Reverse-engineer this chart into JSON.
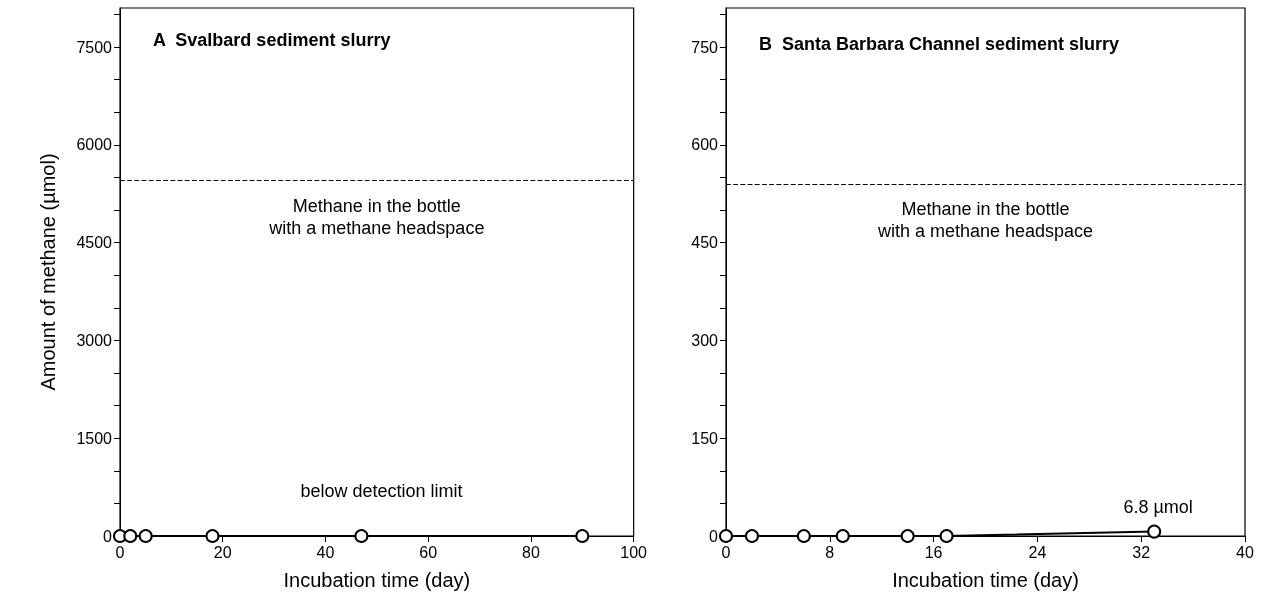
{
  "chart_data": [
    {
      "type": "line",
      "title": "A  Svalbard sediment slurry",
      "xlabel": "Incubation time (day)",
      "ylabel": "Amount of methane (µmol)",
      "x": [
        0,
        2,
        5,
        18,
        47,
        90
      ],
      "series": [
        {
          "color": "#000000",
          "values": [
            0,
            0,
            0,
            0,
            0,
            0
          ]
        }
      ],
      "marker": "circle",
      "line_style": "solid",
      "grid": false,
      "xlim": [
        0,
        100
      ],
      "xticks": [
        0,
        20,
        40,
        60,
        80,
        100
      ],
      "ylim": [
        0,
        8100
      ],
      "yticks": [
        0,
        {
          "value": 500,
          "label": null
        },
        {
          "value": 1000,
          "label": null
        },
        1500,
        {
          "value": 2000,
          "label": null
        },
        {
          "value": 2500,
          "label": null
        },
        3000,
        {
          "value": 3500,
          "label": null
        },
        {
          "value": 4000,
          "label": null
        },
        4500,
        {
          "value": 5000,
          "label": null
        },
        {
          "value": 5500,
          "label": null
        },
        6000,
        {
          "value": 6500,
          "label": null
        },
        {
          "value": 7000,
          "label": null
        },
        7500,
        {
          "value": 8000,
          "label": null
        }
      ],
      "ref_lines": [
        {
          "axis": "y",
          "value": 5450,
          "label": "Methane in the bottle\nwith a methane headspace",
          "line_style": "dashed",
          "color": "#000000"
        }
      ],
      "annotations": [
        "below detection limit"
      ]
    },
    {
      "type": "line",
      "title": "B  Santa Barbara Channel sediment slurry",
      "xlabel": "Incubation time (day)",
      "x": [
        0,
        2,
        6,
        9,
        14,
        17,
        33
      ],
      "series": [
        {
          "color": "#000000",
          "values": [
            0,
            0,
            0,
            0,
            0,
            0,
            6.8
          ]
        }
      ],
      "marker": "circle",
      "line_style": "solid",
      "grid": false,
      "xlim": [
        0,
        40
      ],
      "xticks": [
        0,
        8,
        16,
        24,
        32,
        40
      ],
      "ylim": [
        0,
        810
      ],
      "yticks": [
        0,
        {
          "value": 50,
          "label": null
        },
        {
          "value": 100,
          "label": null
        },
        150,
        {
          "value": 200,
          "label": null
        },
        {
          "value": 250,
          "label": null
        },
        300,
        {
          "value": 350,
          "label": null
        },
        {
          "value": 400,
          "label": null
        },
        450,
        {
          "value": 500,
          "label": null
        },
        {
          "value": 550,
          "label": null
        },
        600,
        {
          "value": 650,
          "label": null
        },
        {
          "value": 700,
          "label": null
        },
        750,
        {
          "value": 800,
          "label": null
        }
      ],
      "ref_lines": [
        {
          "axis": "y",
          "value": 540,
          "label": "Methane in the bottle\nwith a methane headspace",
          "line_style": "dashed",
          "color": "#000000"
        }
      ],
      "annotations": [
        {
          "text": "6.8 µmol",
          "x": 33,
          "y": 6.8
        }
      ]
    }
  ]
}
